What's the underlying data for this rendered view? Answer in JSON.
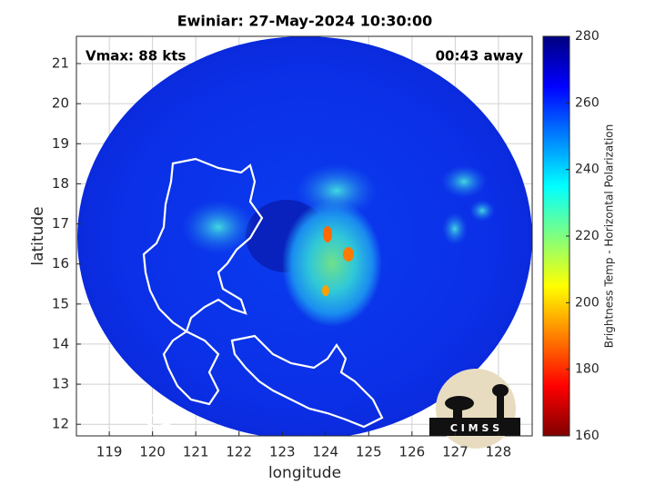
{
  "chart_data": {
    "type": "map",
    "title": "Ewiniar: 27-May-2024 10:30:00",
    "annotations": [
      "Vmax: 88 kts",
      "00:43 away"
    ],
    "xlabel": "longitude",
    "ylabel": "latitude",
    "xlim": [
      118.24,
      128.78
    ],
    "ylim": [
      11.71,
      21.68
    ],
    "xticks": [
      119,
      120,
      121,
      122,
      123,
      124,
      125,
      126,
      127,
      128
    ],
    "yticks": [
      12,
      13,
      14,
      15,
      16,
      17,
      18,
      19,
      20,
      21
    ],
    "grid": true,
    "colorbar": {
      "label": "Brightness Temp - Horizontal Polarization",
      "lim": [
        160,
        280
      ],
      "ticks": [
        160,
        180,
        200,
        220,
        240,
        260,
        280
      ]
    },
    "logo": "C I M S S"
  }
}
